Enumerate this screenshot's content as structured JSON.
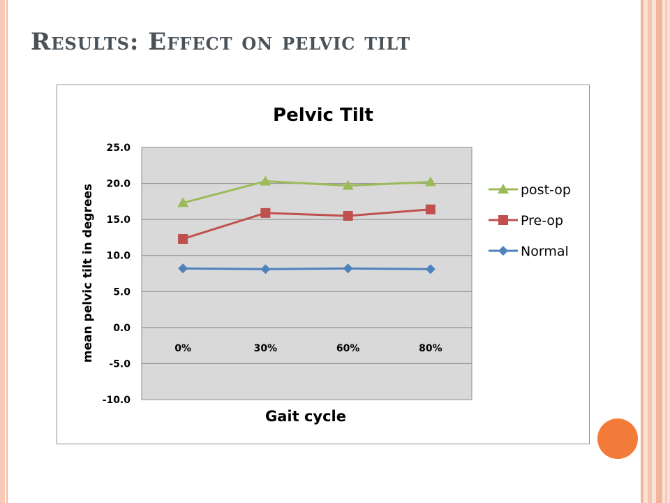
{
  "slide": {
    "title": "Results: Effect on pelvic tilt"
  },
  "chart_data": {
    "type": "line",
    "title": "Pelvic Tilt",
    "xlabel": "Gait cycle",
    "ylabel": "mean pelvic tilt in degrees",
    "categories": [
      "0%",
      "30%",
      "60%",
      "80%"
    ],
    "ylim": [
      -10.0,
      25.0
    ],
    "ytick_step": 5,
    "yticks": [
      "25.0",
      "20.0",
      "15.0",
      "10.0",
      "5.0",
      "0.0",
      "-5.0",
      "-10.0"
    ],
    "grid": true,
    "legend_position": "right",
    "series": [
      {
        "name": "post-op",
        "values": [
          17.3,
          20.3,
          19.7,
          20.2
        ],
        "color": "#9bbb59",
        "marker": "triangle"
      },
      {
        "name": "Pre-op",
        "values": [
          12.3,
          15.9,
          15.5,
          16.4
        ],
        "color": "#c0504d",
        "marker": "square"
      },
      {
        "name": "Normal",
        "values": [
          8.2,
          8.1,
          8.2,
          8.1
        ],
        "color": "#4f81bd",
        "marker": "diamond"
      }
    ]
  }
}
